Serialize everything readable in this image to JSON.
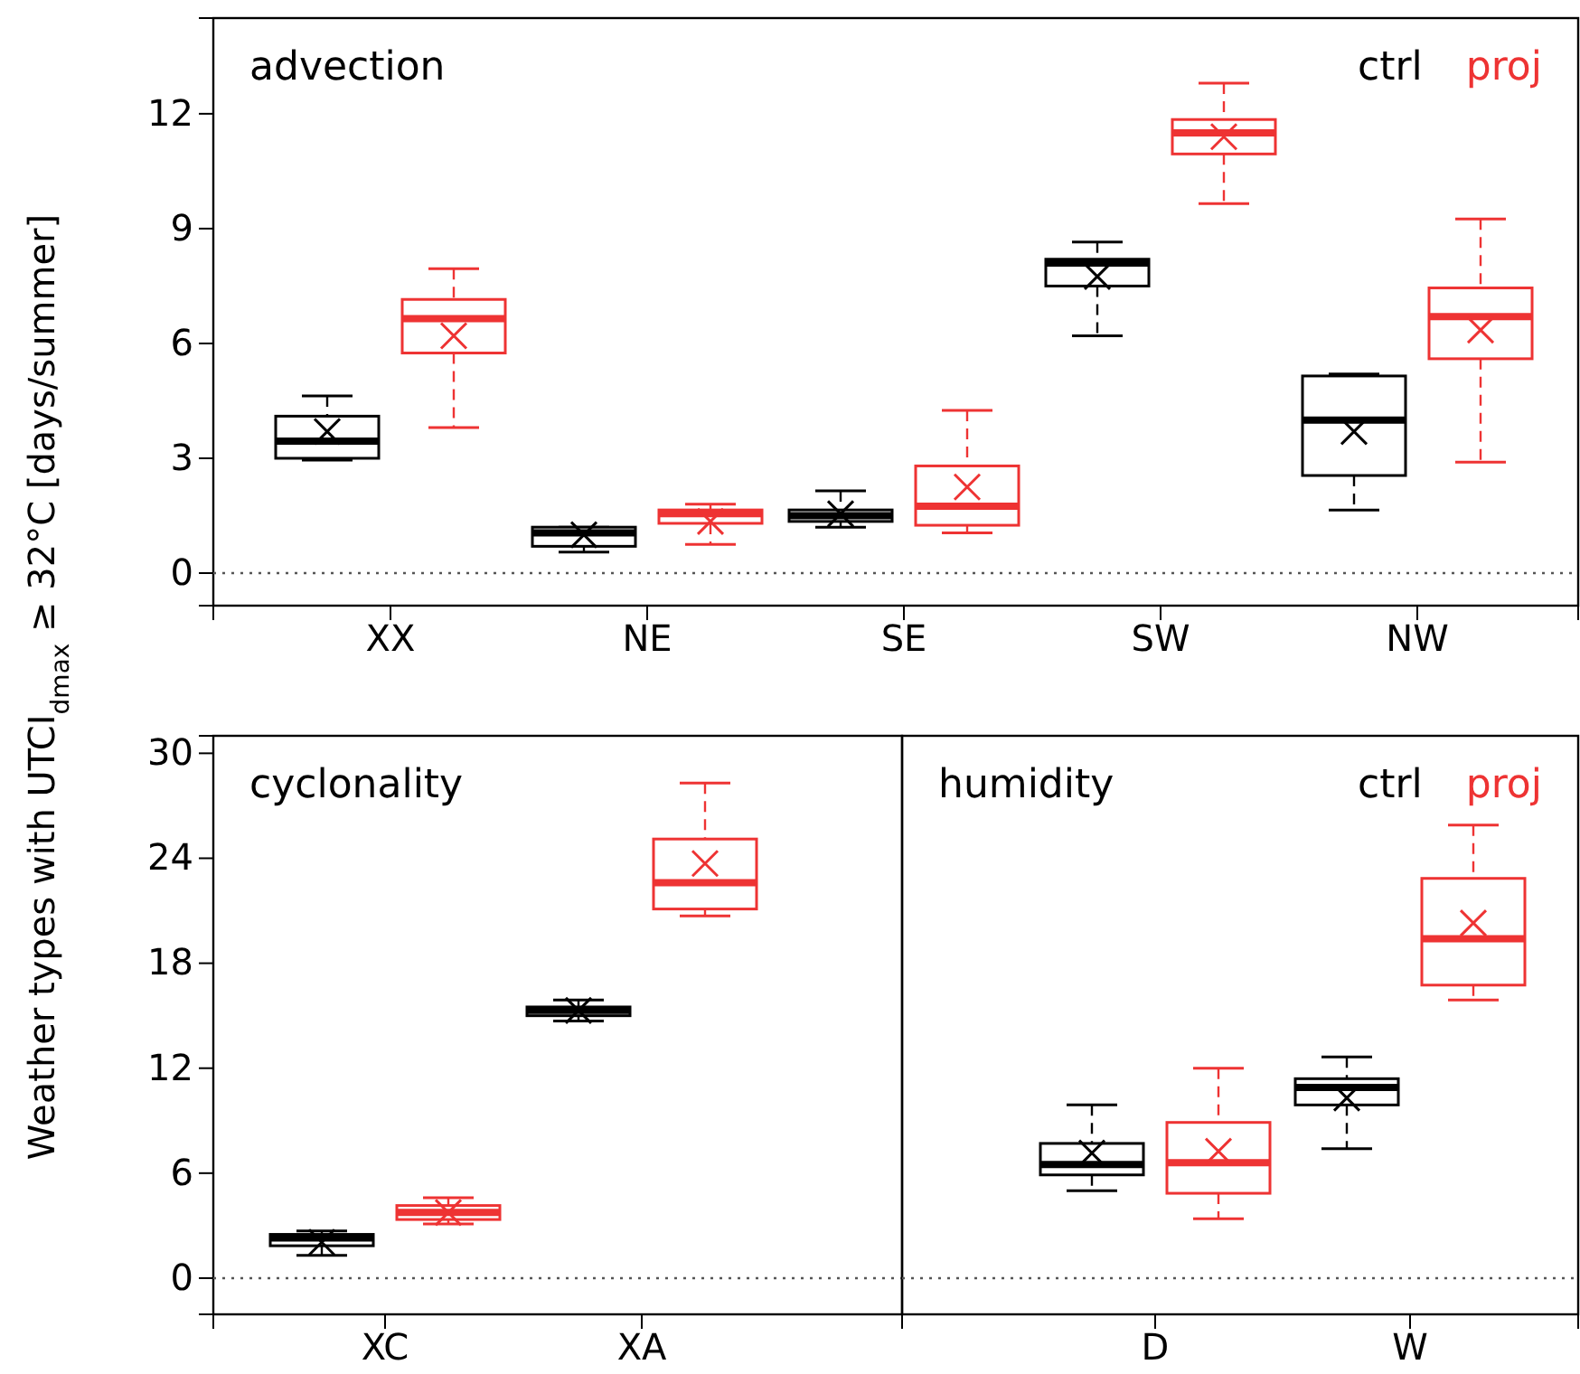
{
  "chart_data": [
    {
      "type": "box",
      "title": "advection",
      "ylabel": "Weather types with  UTCI$_{dmax}$ ≥ 32°C [days/summer]",
      "categories": [
        "XX",
        "NE",
        "SE",
        "SW",
        "NW"
      ],
      "ylim": [
        -0.85,
        14.5
      ],
      "yticks": [
        0,
        3,
        6,
        9,
        12
      ],
      "legend": "top right",
      "ref_lines": [
        {
          "axis": "y",
          "value": 0,
          "line_style": "dotted"
        }
      ],
      "series": [
        {
          "name": "ctrl",
          "color": "#000000",
          "boxes": [
            {
              "low": 2.95,
              "q1": 3.0,
              "median": 3.45,
              "q3": 4.1,
              "high": 4.63,
              "mean": 3.7
            },
            {
              "low": 0.55,
              "q1": 0.7,
              "median": 1.05,
              "q3": 1.2,
              "high": 1.2,
              "mean": 1.0
            },
            {
              "low": 1.2,
              "q1": 1.35,
              "median": 1.5,
              "q3": 1.65,
              "high": 2.15,
              "mean": 1.55
            },
            {
              "low": 6.2,
              "q1": 7.5,
              "median": 8.1,
              "q3": 8.2,
              "high": 8.65,
              "mean": 7.75
            },
            {
              "low": 1.65,
              "q1": 2.55,
              "median": 4.0,
              "q3": 5.15,
              "high": 5.2,
              "mean": 3.7
            }
          ]
        },
        {
          "name": "proj",
          "color": "#ee3333",
          "boxes": [
            {
              "low": 3.8,
              "q1": 5.75,
              "median": 6.65,
              "q3": 7.15,
              "high": 7.95,
              "mean": 6.2
            },
            {
              "low": 0.75,
              "q1": 1.3,
              "median": 1.55,
              "q3": 1.65,
              "high": 1.8,
              "mean": 1.35
            },
            {
              "low": 1.05,
              "q1": 1.25,
              "median": 1.75,
              "q3": 2.8,
              "high": 4.25,
              "mean": 2.25
            },
            {
              "low": 9.65,
              "q1": 10.95,
              "median": 11.5,
              "q3": 11.85,
              "high": 12.8,
              "mean": 11.4
            },
            {
              "low": 2.9,
              "q1": 5.6,
              "median": 6.7,
              "q3": 7.45,
              "high": 9.25,
              "mean": 6.35
            }
          ]
        }
      ]
    },
    {
      "type": "box",
      "title": "cyclonality",
      "categories": [
        "XC",
        "XA"
      ],
      "ylim": [
        -2.07,
        31
      ],
      "yticks": [
        0,
        6,
        12,
        18,
        24,
        30
      ],
      "ref_lines": [
        {
          "axis": "y",
          "value": 0,
          "line_style": "dotted"
        }
      ],
      "series": [
        {
          "color": "#000000",
          "boxes": [
            {
              "low": 1.3,
              "q1": 1.85,
              "median": 2.3,
              "q3": 2.5,
              "high": 2.7,
              "mean": 2.05
            },
            {
              "low": 14.7,
              "q1": 15.0,
              "median": 15.3,
              "q3": 15.5,
              "high": 15.9,
              "mean": 15.3
            }
          ]
        },
        {
          "color": "#ee3333",
          "boxes": [
            {
              "low": 3.1,
              "q1": 3.35,
              "median": 3.75,
              "q3": 4.15,
              "high": 4.6,
              "mean": 3.75
            },
            {
              "low": 20.7,
              "q1": 21.1,
              "median": 22.6,
              "q3": 25.1,
              "high": 28.3,
              "mean": 23.7
            }
          ]
        }
      ]
    },
    {
      "type": "box",
      "title": "humidity",
      "categories": [
        "D",
        "W"
      ],
      "ylim": [
        -2.07,
        31
      ],
      "yticks": [
        0,
        6,
        12,
        18,
        24,
        30
      ],
      "tick_labels": "x",
      "legend": "top right",
      "ref_lines": [
        {
          "axis": "y",
          "value": 0,
          "line_style": "dotted"
        }
      ],
      "series": [
        {
          "name": "ctrl",
          "color": "#000000",
          "boxes": [
            {
              "low": 5.0,
              "q1": 5.9,
              "median": 6.5,
              "q3": 7.7,
              "high": 9.9,
              "mean": 7.15
            },
            {
              "low": 7.4,
              "q1": 9.9,
              "median": 10.9,
              "q3": 11.4,
              "high": 12.65,
              "mean": 10.3
            }
          ]
        },
        {
          "name": "proj",
          "color": "#ee3333",
          "boxes": [
            {
              "low": 3.4,
              "q1": 4.85,
              "median": 6.6,
              "q3": 8.9,
              "high": 12.0,
              "mean": 7.25
            },
            {
              "low": 15.9,
              "q1": 16.75,
              "median": 19.4,
              "q3": 22.85,
              "high": 25.9,
              "mean": 20.3
            }
          ]
        }
      ]
    }
  ]
}
